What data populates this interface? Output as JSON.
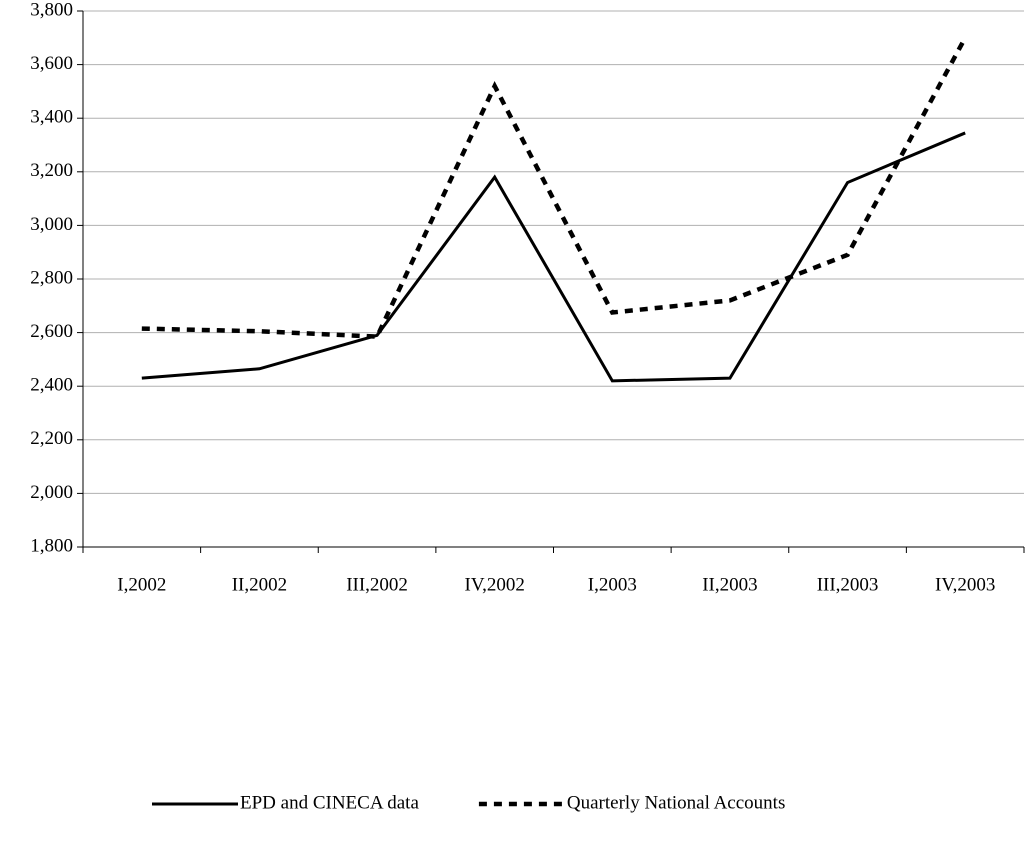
{
  "chart_data": {
    "type": "line",
    "categories": [
      "I,2002",
      "II,2002",
      "III,2002",
      "IV,2002",
      "I,2003",
      "II,2003",
      "III,2003",
      "IV,2003"
    ],
    "series": [
      {
        "name": "EPD and CINECA data",
        "color": "#000000",
        "dash": "solid",
        "values": [
          2430,
          2465,
          2590,
          3180,
          2420,
          2430,
          3160,
          3345
        ]
      },
      {
        "name": "Quarterly National Accounts",
        "color": "#000000",
        "dash": "dashed",
        "values": [
          2615,
          2605,
          2585,
          3520,
          2675,
          2720,
          2890,
          3700
        ]
      }
    ],
    "ylim": [
      1800,
      3800
    ],
    "yticks": [
      {
        "value": 1800,
        "label": "1,800"
      },
      {
        "value": 2000,
        "label": "2,000"
      },
      {
        "value": 2200,
        "label": "2,200"
      },
      {
        "value": 2400,
        "label": "2,400"
      },
      {
        "value": 2600,
        "label": "2,600"
      },
      {
        "value": 2800,
        "label": "2,800"
      },
      {
        "value": 3000,
        "label": "3,000"
      },
      {
        "value": 3200,
        "label": "3,200"
      },
      {
        "value": 3400,
        "label": "3,400"
      },
      {
        "value": 3600,
        "label": "3,600"
      },
      {
        "value": 3800,
        "label": "3,800"
      }
    ],
    "grid": true,
    "legend": "bottom"
  }
}
